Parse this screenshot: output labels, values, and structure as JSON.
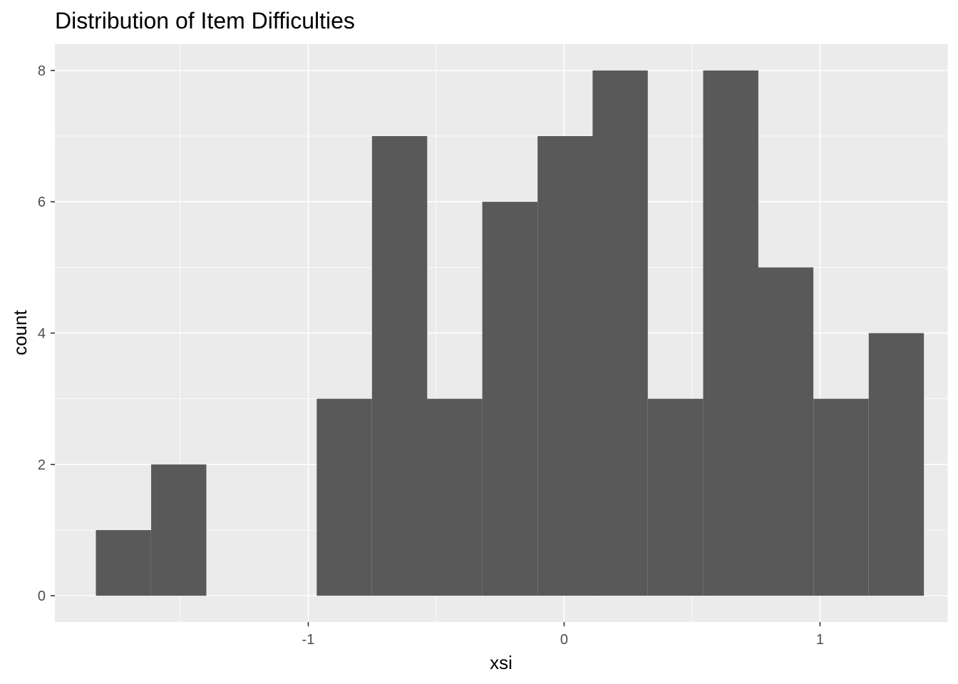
{
  "chart_data": {
    "type": "bar",
    "title": "Distribution of Item Difficulties",
    "xlabel": "xsi",
    "ylabel": "count",
    "xlim": [
      -1.99,
      1.5
    ],
    "ylim": [
      -0.4,
      8.4
    ],
    "x_ticks": [
      -1,
      0,
      1
    ],
    "x_tick_labels": [
      "-1",
      "0",
      "1"
    ],
    "y_ticks": [
      0,
      2,
      4,
      6,
      8
    ],
    "y_tick_labels": [
      "0",
      "2",
      "4",
      "6",
      "8"
    ],
    "bin_width": 0.2157,
    "bins": [
      {
        "x_center": -1.722,
        "count": 1
      },
      {
        "x_center": -1.506,
        "count": 2
      },
      {
        "x_center": -1.29,
        "count": 0
      },
      {
        "x_center": -1.075,
        "count": 0
      },
      {
        "x_center": -0.859,
        "count": 3
      },
      {
        "x_center": -0.643,
        "count": 7
      },
      {
        "x_center": -0.428,
        "count": 3
      },
      {
        "x_center": -0.212,
        "count": 6
      },
      {
        "x_center": 0.004,
        "count": 7
      },
      {
        "x_center": 0.219,
        "count": 8
      },
      {
        "x_center": 0.435,
        "count": 3
      },
      {
        "x_center": 0.651,
        "count": 8
      },
      {
        "x_center": 0.866,
        "count": 5
      },
      {
        "x_center": 1.082,
        "count": 3
      },
      {
        "x_center": 1.298,
        "count": 4
      }
    ],
    "grid": true,
    "legend": "none",
    "colors": {
      "panel_background": "#ebebeb",
      "grid_major": "#ffffff",
      "bar_fill": "#595959"
    }
  }
}
